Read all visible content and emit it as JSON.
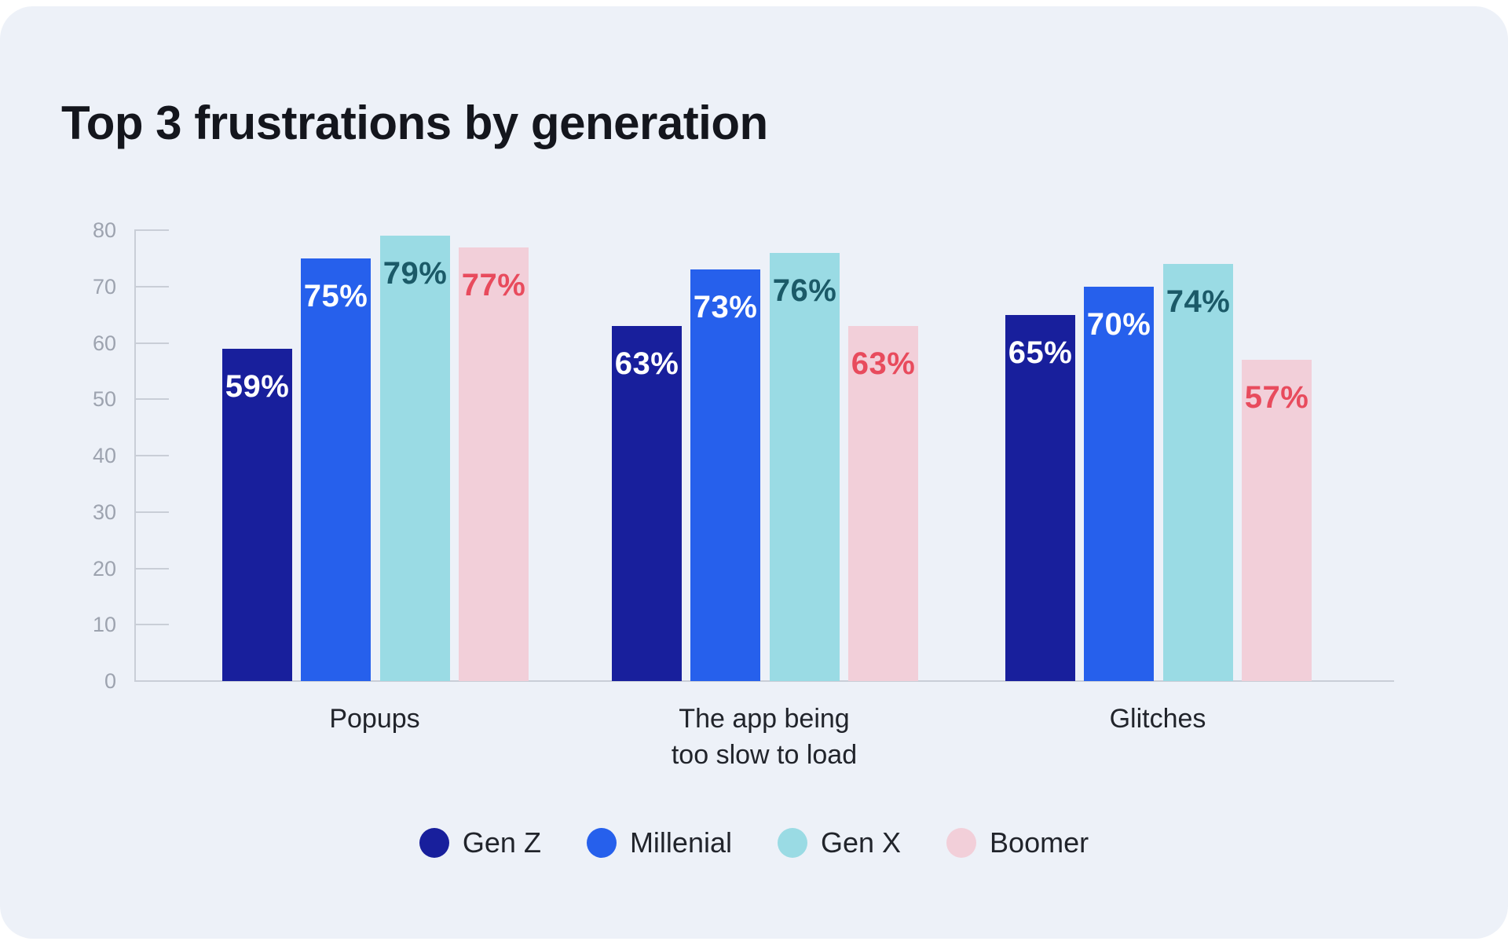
{
  "page": {
    "background": "#FFFFFF",
    "card_background": "#EDF1F8"
  },
  "chart_data": {
    "type": "bar",
    "title": "Top 3 frustrations by generation",
    "categories": [
      [
        "Popups"
      ],
      [
        "The app being",
        "too slow to load"
      ],
      [
        "Glitches"
      ]
    ],
    "series": [
      {
        "name": "Gen Z",
        "color": "#181F9C",
        "label_color": "#FFFFFF",
        "values": [
          59,
          63,
          65
        ]
      },
      {
        "name": "Millenial",
        "color": "#2660EC",
        "label_color": "#FFFFFF",
        "values": [
          75,
          73,
          70
        ]
      },
      {
        "name": "Gen X",
        "color": "#9ADBE4",
        "label_color": "#1B5A68",
        "values": [
          79,
          76,
          74
        ]
      },
      {
        "name": "Boomer",
        "color": "#F2CFD9",
        "label_color": "#E84B5D",
        "values": [
          77,
          63,
          57
        ]
      }
    ],
    "value_suffix": "%",
    "value_labels": [
      [
        "59%",
        "63%",
        "65%"
      ],
      [
        "75%",
        "73%",
        "70%"
      ],
      [
        "79%",
        "76%",
        "74%"
      ],
      [
        "77%",
        "63%",
        "57%"
      ]
    ],
    "yticks": [
      0,
      10,
      20,
      30,
      40,
      50,
      60,
      70,
      80
    ],
    "ylim": [
      0,
      80
    ],
    "grid": "short-left-ticks",
    "legend_position": "bottom-center",
    "axis_color": "#C9CED7",
    "tick_label_color": "#9DA3AF",
    "category_label_color": "#21242B",
    "title_color": "#14161D"
  }
}
